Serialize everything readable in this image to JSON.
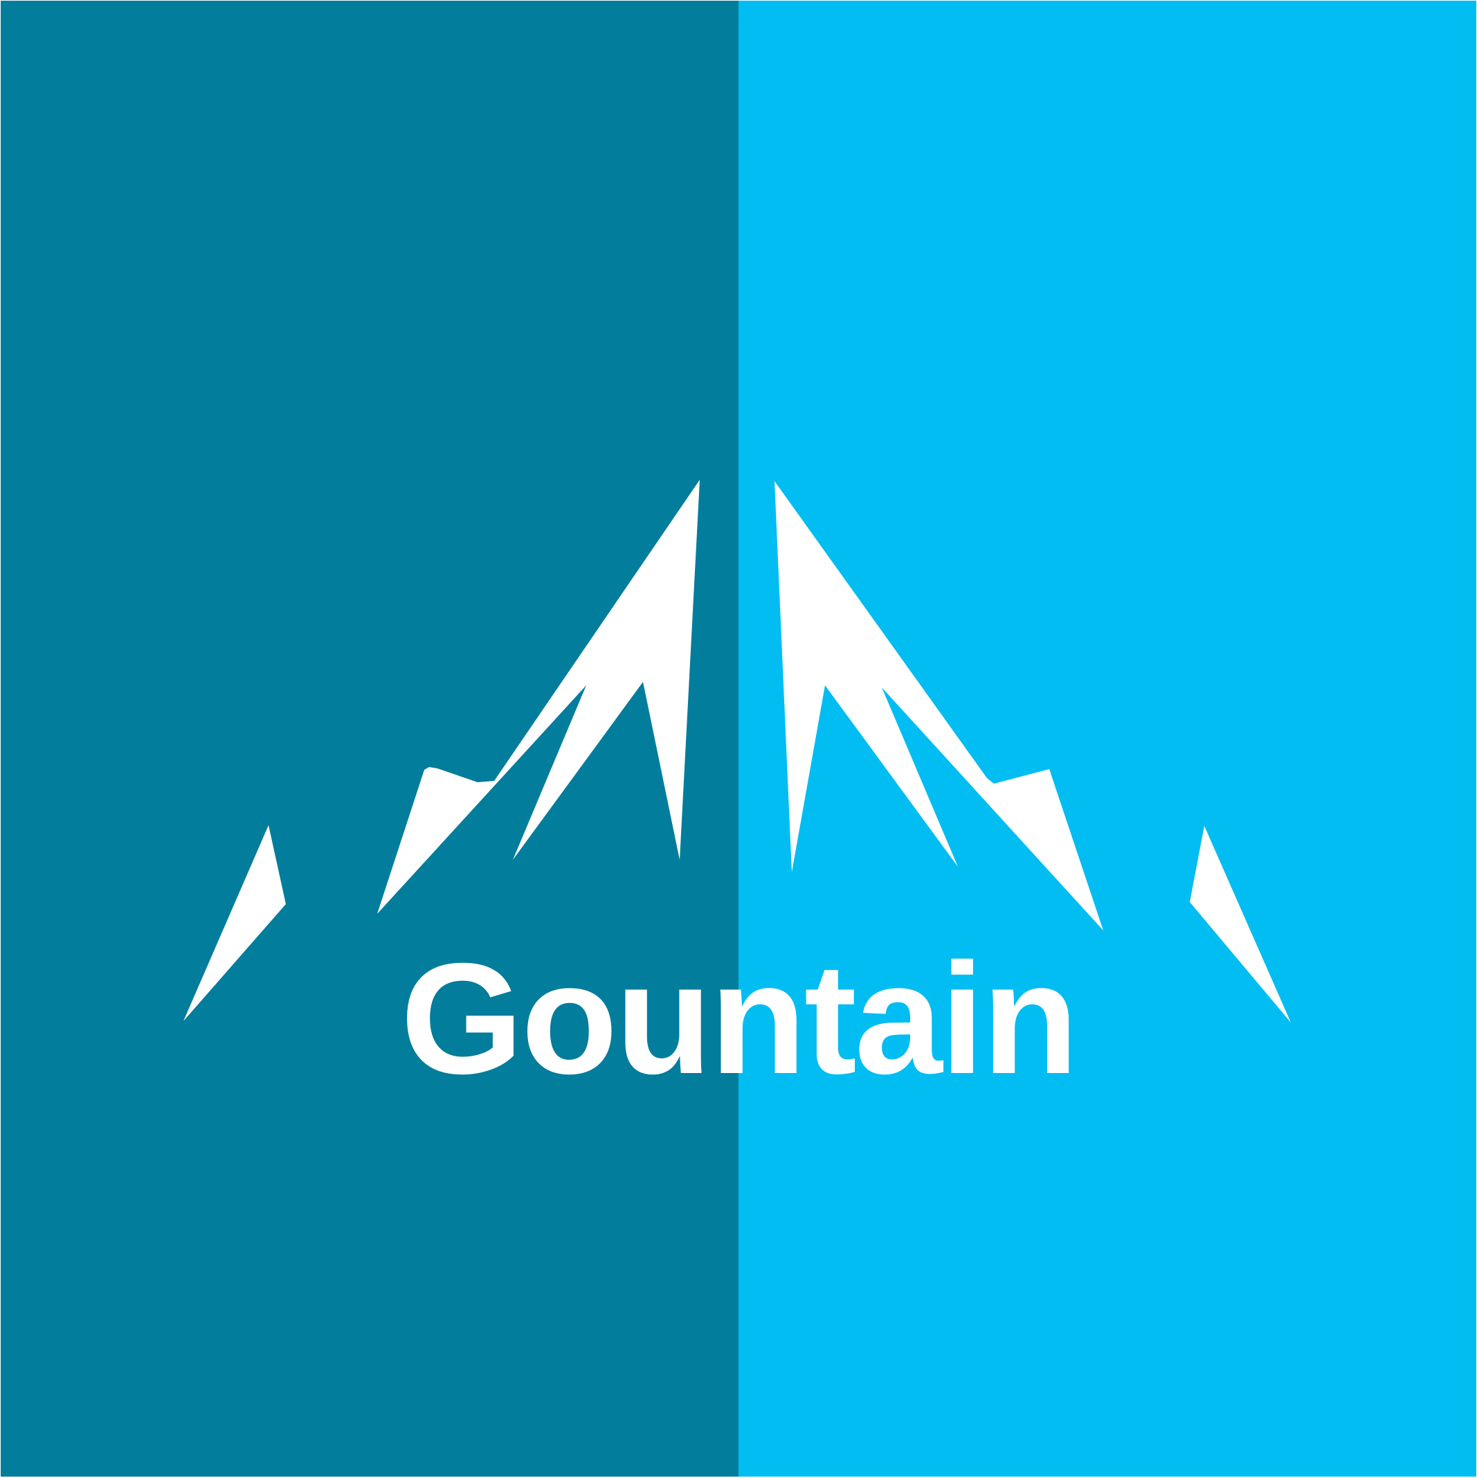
{
  "logo": {
    "brand_name": "Gountain",
    "colors": {
      "left_panel": "#027d9c",
      "right_panel": "#02bdf2",
      "mountains": "#ffffff",
      "text": "#ffffff"
    },
    "icon": "mountain-range-icon"
  }
}
